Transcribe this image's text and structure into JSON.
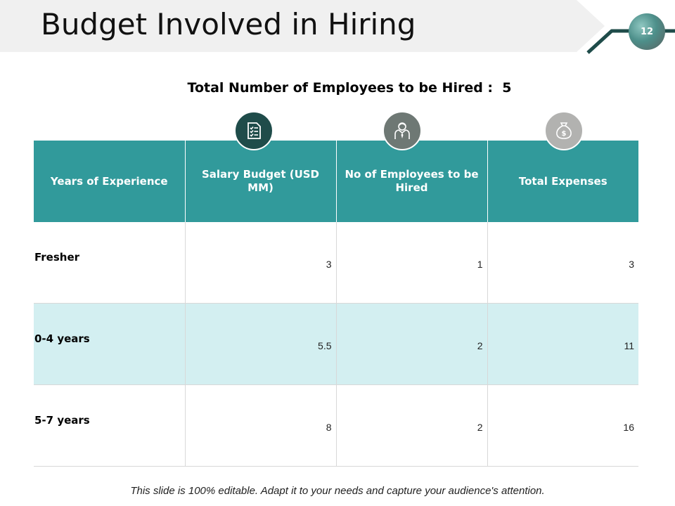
{
  "slide": {
    "title": "Budget Involved in Hiring",
    "page_number": "12",
    "subtitle": "Total Number of Employees to be Hired :  5",
    "footer_note": "This slide is 100% editable. Adapt it to your needs and capture your audience's attention.",
    "colors": {
      "header_teal": "#319a9b",
      "alt_row": "#d3eff1",
      "title_banner": "#f0f0f0"
    }
  },
  "icons": [
    "checklist-icon",
    "employee-icon",
    "money-bag-icon"
  ],
  "table": {
    "headers": [
      "Years of Experience",
      "Salary Budget (USD MM)",
      "No of Employees  to be Hired",
      "Total Expenses"
    ],
    "rows": [
      {
        "label": "Fresher",
        "salary": "3",
        "employees": "1",
        "total": "3"
      },
      {
        "label": "0-4 years",
        "salary": "5.5",
        "employees": "2",
        "total": "11"
      },
      {
        "label": "5-7 years",
        "salary": "8",
        "employees": "2",
        "total": "16"
      }
    ]
  }
}
